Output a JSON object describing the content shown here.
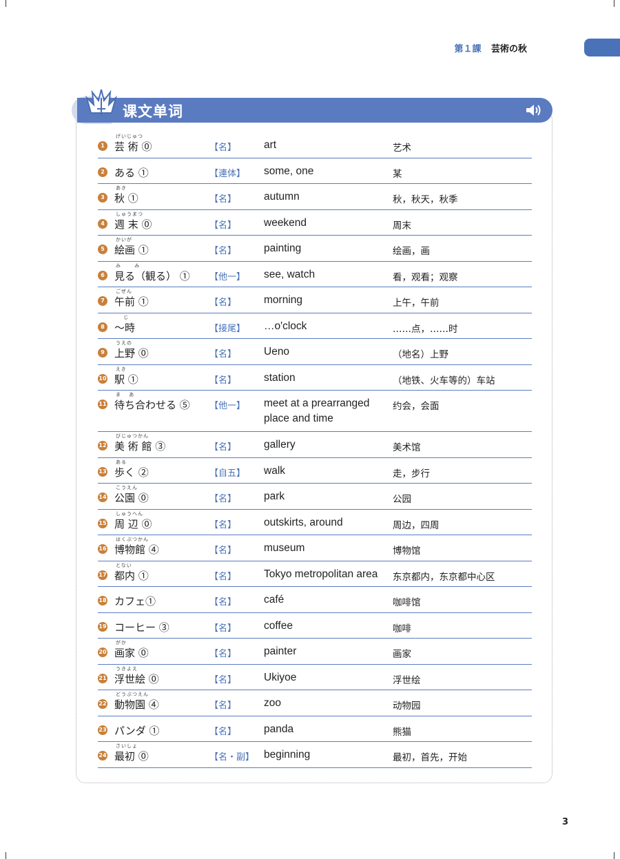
{
  "header": {
    "lesson_number": "第１課",
    "lesson_title": "芸術の秋",
    "accent_color": "#4a72b8"
  },
  "section": {
    "title": "课文单词",
    "icon": "crown-logo-icon",
    "audio_icon": "speaker-icon",
    "band_color": "#5a7bc0"
  },
  "vocabulary": [
    {
      "no": "1",
      "reading": "げいじゅつ",
      "word": "芸 術 ⓪",
      "pos": "【名】",
      "english": "art",
      "chinese": "艺术"
    },
    {
      "no": "2",
      "reading": "",
      "word": "ある ①",
      "pos": "【連体】",
      "english": "some, one",
      "chinese": "某"
    },
    {
      "no": "3",
      "reading": "あき",
      "word": "秋 ①",
      "pos": "【名】",
      "english": "autumn",
      "chinese": "秋，秋天，秋季"
    },
    {
      "no": "4",
      "reading": "しゅうまつ",
      "word": "週 末 ⓪",
      "pos": "【名】",
      "english": "weekend",
      "chinese": "周末"
    },
    {
      "no": "5",
      "reading": "かいが",
      "word": "絵画 ①",
      "pos": "【名】",
      "english": "painting",
      "chinese": "绘画，画"
    },
    {
      "no": "6",
      "reading": "み　　 み",
      "word": "見る（観る） ①",
      "pos": "【他一】",
      "english": "see, watch",
      "chinese": "看，观看；观察"
    },
    {
      "no": "7",
      "reading": "ごぜん",
      "word": "午前 ①",
      "pos": "【名】",
      "english": "morning",
      "chinese": "上午，午前"
    },
    {
      "no": "8",
      "reading": "　 じ",
      "word": "～時",
      "pos": "【接尾】",
      "english": "…o'clock",
      "chinese": "……点，……时"
    },
    {
      "no": "9",
      "reading": "うえの",
      "word": "上野 ⓪",
      "pos": "【名】",
      "english": "Ueno",
      "chinese": "（地名）上野"
    },
    {
      "no": "10",
      "reading": "えき",
      "word": "駅 ①",
      "pos": "【名】",
      "english": "station",
      "chinese": "（地铁、火车等的）车站"
    },
    {
      "no": "11",
      "reading": "ま　 あ",
      "word": "待ち合わせる ⑤",
      "pos": "【他一】",
      "english": "meet at a prearranged place and time",
      "chinese": "约会，会面"
    },
    {
      "no": "12",
      "reading": "びじゅつかん",
      "word": "美 術 館 ③",
      "pos": "【名】",
      "english": "gallery",
      "chinese": "美术馆"
    },
    {
      "no": "13",
      "reading": "ある",
      "word": "歩く ②",
      "pos": "【自五】",
      "english": "walk",
      "chinese": "走，步行"
    },
    {
      "no": "14",
      "reading": "こうえん",
      "word": "公園 ⓪",
      "pos": "【名】",
      "english": "park",
      "chinese": "公园"
    },
    {
      "no": "15",
      "reading": "しゅうへん",
      "word": "周 辺 ⓪",
      "pos": "【名】",
      "english": "outskirts, around",
      "chinese": "周边，四周"
    },
    {
      "no": "16",
      "reading": "はくぶつかん",
      "word": "博物館 ④",
      "pos": "【名】",
      "english": "museum",
      "chinese": "博物馆"
    },
    {
      "no": "17",
      "reading": "とない",
      "word": "都内 ①",
      "pos": "【名】",
      "english": "Tokyo metropolitan area",
      "chinese": "东京都内，东京都中心区"
    },
    {
      "no": "18",
      "reading": "",
      "word": "カフェ①",
      "pos": "【名】",
      "english": "café",
      "chinese": "咖啡馆"
    },
    {
      "no": "19",
      "reading": "",
      "word": "コーヒー ③",
      "pos": "【名】",
      "english": "coffee",
      "chinese": "咖啡"
    },
    {
      "no": "20",
      "reading": "がか",
      "word": "画家 ⓪",
      "pos": "【名】",
      "english": "painter",
      "chinese": "画家"
    },
    {
      "no": "21",
      "reading": "うきよえ",
      "word": "浮世絵 ⓪",
      "pos": "【名】",
      "english": "Ukiyoe",
      "chinese": "浮世绘"
    },
    {
      "no": "22",
      "reading": "どうぶつえん",
      "word": "動物園 ④",
      "pos": "【名】",
      "english": "zoo",
      "chinese": "动物园"
    },
    {
      "no": "23",
      "reading": "",
      "word": "パンダ ①",
      "pos": "【名】",
      "english": "panda",
      "chinese": "熊猫"
    },
    {
      "no": "24",
      "reading": "さいしょ",
      "word": "最初 ⓪",
      "pos": "【名・副】",
      "english": "beginning",
      "chinese": "最初，首先，开始"
    }
  ],
  "page_number": "3"
}
